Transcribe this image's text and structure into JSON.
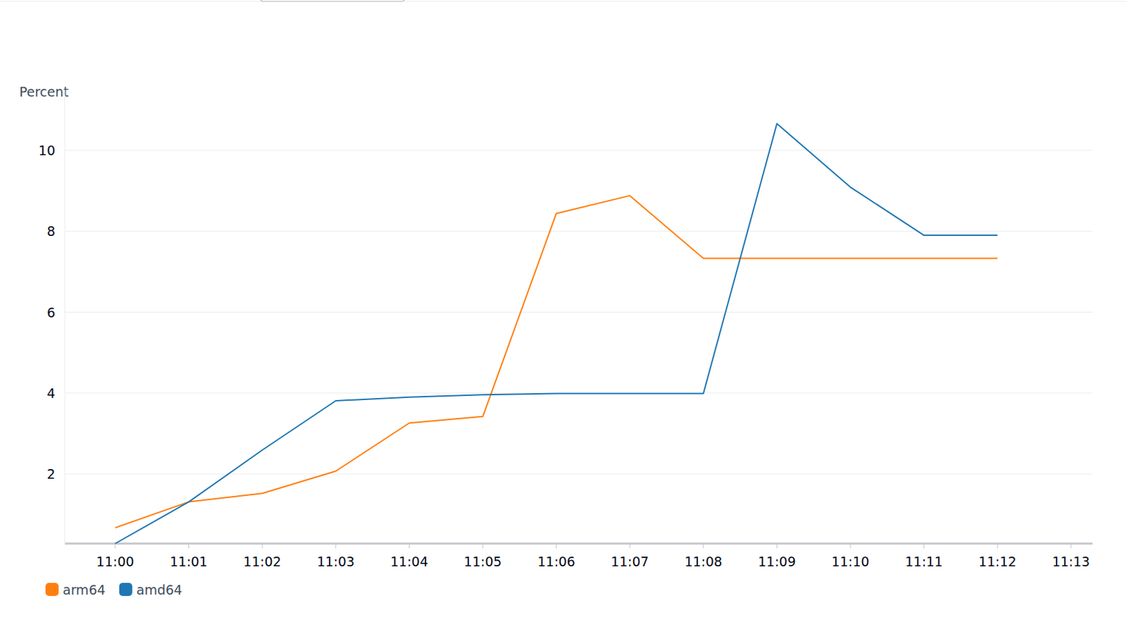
{
  "chart_data": {
    "type": "line",
    "y_label": "Percent",
    "categories": [
      "11:00",
      "11:01",
      "11:02",
      "11:03",
      "11:04",
      "11:05",
      "11:06",
      "11:07",
      "11:08",
      "11:09",
      "11:10",
      "11:11",
      "11:12",
      "11:13"
    ],
    "series": [
      {
        "name": "arm64",
        "color": "#ff7f0e",
        "values": [
          0.67,
          1.31,
          1.52,
          2.07,
          3.26,
          3.42,
          8.44,
          8.88,
          7.33,
          7.33,
          7.33,
          7.33,
          7.33,
          null
        ]
      },
      {
        "name": "amd64",
        "color": "#1f77b4",
        "values": [
          0.28,
          1.31,
          2.59,
          3.81,
          3.9,
          3.96,
          3.99,
          3.99,
          3.99,
          10.66,
          9.09,
          7.9,
          7.9,
          null
        ]
      }
    ],
    "ylim": [
      0.28,
      11.5
    ],
    "yticks": [
      2,
      4,
      6,
      8,
      10
    ],
    "grid": true,
    "legend": "bottom"
  }
}
